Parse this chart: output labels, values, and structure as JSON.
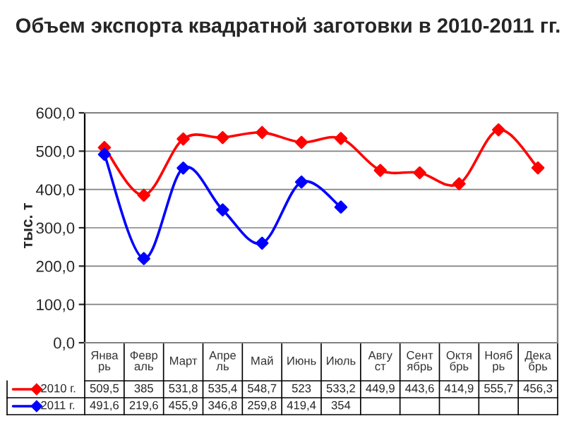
{
  "chart_data": {
    "type": "line",
    "title": "Объем экспорта квадратной заготовки в 2010-2011 гг.",
    "ylabel": "тыс. т",
    "categories": [
      "Январь",
      "Февраль",
      "Март",
      "Апрель",
      "Май",
      "Июнь",
      "Июль",
      "Август",
      "Сентябрь",
      "Октябрь",
      "Ноябрь",
      "Декабрь"
    ],
    "series": [
      {
        "name": "2010 г.",
        "color": "#ff0000",
        "values": [
          509.5,
          385,
          531.8,
          535.4,
          548.7,
          523,
          533.2,
          449.9,
          443.6,
          414.9,
          555.7,
          456.3
        ],
        "value_labels": [
          "509,5",
          "385",
          "531,8",
          "535,4",
          "548,7",
          "523",
          "533,2",
          "449,9",
          "443,6",
          "414,9",
          "555,7",
          "456,3"
        ]
      },
      {
        "name": "2011 г.",
        "color": "#0000ff",
        "values": [
          491.6,
          219.6,
          455.9,
          346.8,
          259.8,
          419.4,
          354,
          null,
          null,
          null,
          null,
          null
        ],
        "value_labels": [
          "491,6",
          "219,6",
          "455,9",
          "346,8",
          "259,8",
          "419,4",
          "354",
          null,
          null,
          null,
          null,
          null
        ]
      }
    ],
    "ylim": [
      0,
      600
    ],
    "yticks": [
      {
        "value": 0,
        "label": "0,0"
      },
      {
        "value": 100,
        "label": "100,0"
      },
      {
        "value": 200,
        "label": "200,0"
      },
      {
        "value": 300,
        "label": "300,0"
      },
      {
        "value": 400,
        "label": "400,0"
      },
      {
        "value": 500,
        "label": "500,0"
      },
      {
        "value": 600,
        "label": "600,0"
      }
    ],
    "grid": "y",
    "marker": "diamond",
    "line_style": "solid",
    "legend": "bottom"
  }
}
